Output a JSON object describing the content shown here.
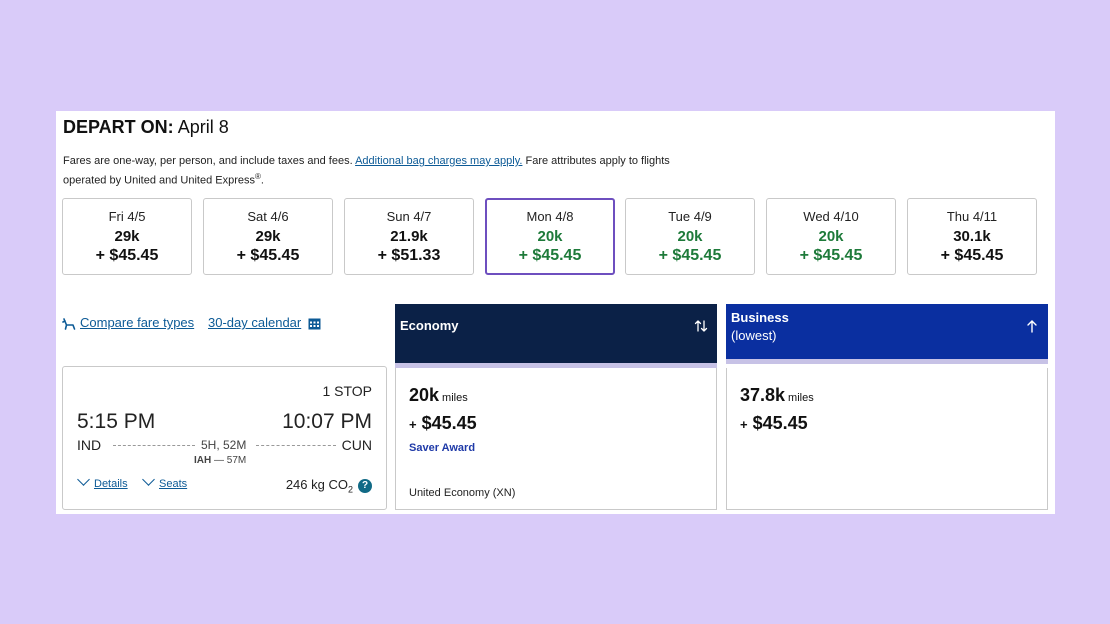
{
  "header": {
    "depart_label": "DEPART ON:",
    "depart_date": "April 8",
    "notice_before": "Fares are one-way, per person, and include taxes and fees. ",
    "notice_link": "Additional bag charges may apply.",
    "notice_after": " Fare attributes apply to flights operated by United and United Express",
    "notice_reg": "®",
    "notice_end": "."
  },
  "date_cards": [
    {
      "day": "Fri 4/5",
      "miles": "29k",
      "price": "+ $45.45",
      "selected": false,
      "highlight": false
    },
    {
      "day": "Sat 4/6",
      "miles": "29k",
      "price": "+ $45.45",
      "selected": false,
      "highlight": false
    },
    {
      "day": "Sun 4/7",
      "miles": "21.9k",
      "price": "+ $51.33",
      "selected": false,
      "highlight": false
    },
    {
      "day": "Mon 4/8",
      "miles": "20k",
      "price": "+ $45.45",
      "selected": true,
      "highlight": true
    },
    {
      "day": "Tue 4/9",
      "miles": "20k",
      "price": "+ $45.45",
      "selected": false,
      "highlight": true
    },
    {
      "day": "Wed 4/10",
      "miles": "20k",
      "price": "+ $45.45",
      "selected": false,
      "highlight": true
    },
    {
      "day": "Thu 4/11",
      "miles": "30.1k",
      "price": "+ $45.45",
      "selected": false,
      "highlight": false
    }
  ],
  "tools": {
    "compare_label": "Compare fare types",
    "calendar_label": "30-day calendar"
  },
  "flight": {
    "stops": "1 STOP",
    "depart_time": "5:15 PM",
    "arrive_time": "10:07 PM",
    "origin": "IND",
    "destination": "CUN",
    "duration": "5H, 52M",
    "connection_airport": "IAH",
    "connection_sep": " — ",
    "connection_time": "57M",
    "details_label": "Details",
    "seats_label": "Seats",
    "co2_value": "246 kg CO",
    "co2_sub": "2",
    "help": "?"
  },
  "fares": {
    "economy": {
      "title": "Economy",
      "miles": "20k",
      "miles_unit": "miles",
      "plus": "+",
      "price": "$45.45",
      "award": "Saver Award",
      "fare_class": "United Economy (XN)",
      "header_color": "#0b2147"
    },
    "business": {
      "title": "Business",
      "subtitle": "(lowest)",
      "miles": "37.8k",
      "miles_unit": "miles",
      "plus": "+",
      "price": "$45.45",
      "header_color": "#0a2fa0"
    }
  },
  "colors": {
    "background": "#d9cbf9",
    "selected_border": "#6e4fbf",
    "green_price": "#1e7a3a",
    "link": "#0c5a96"
  }
}
